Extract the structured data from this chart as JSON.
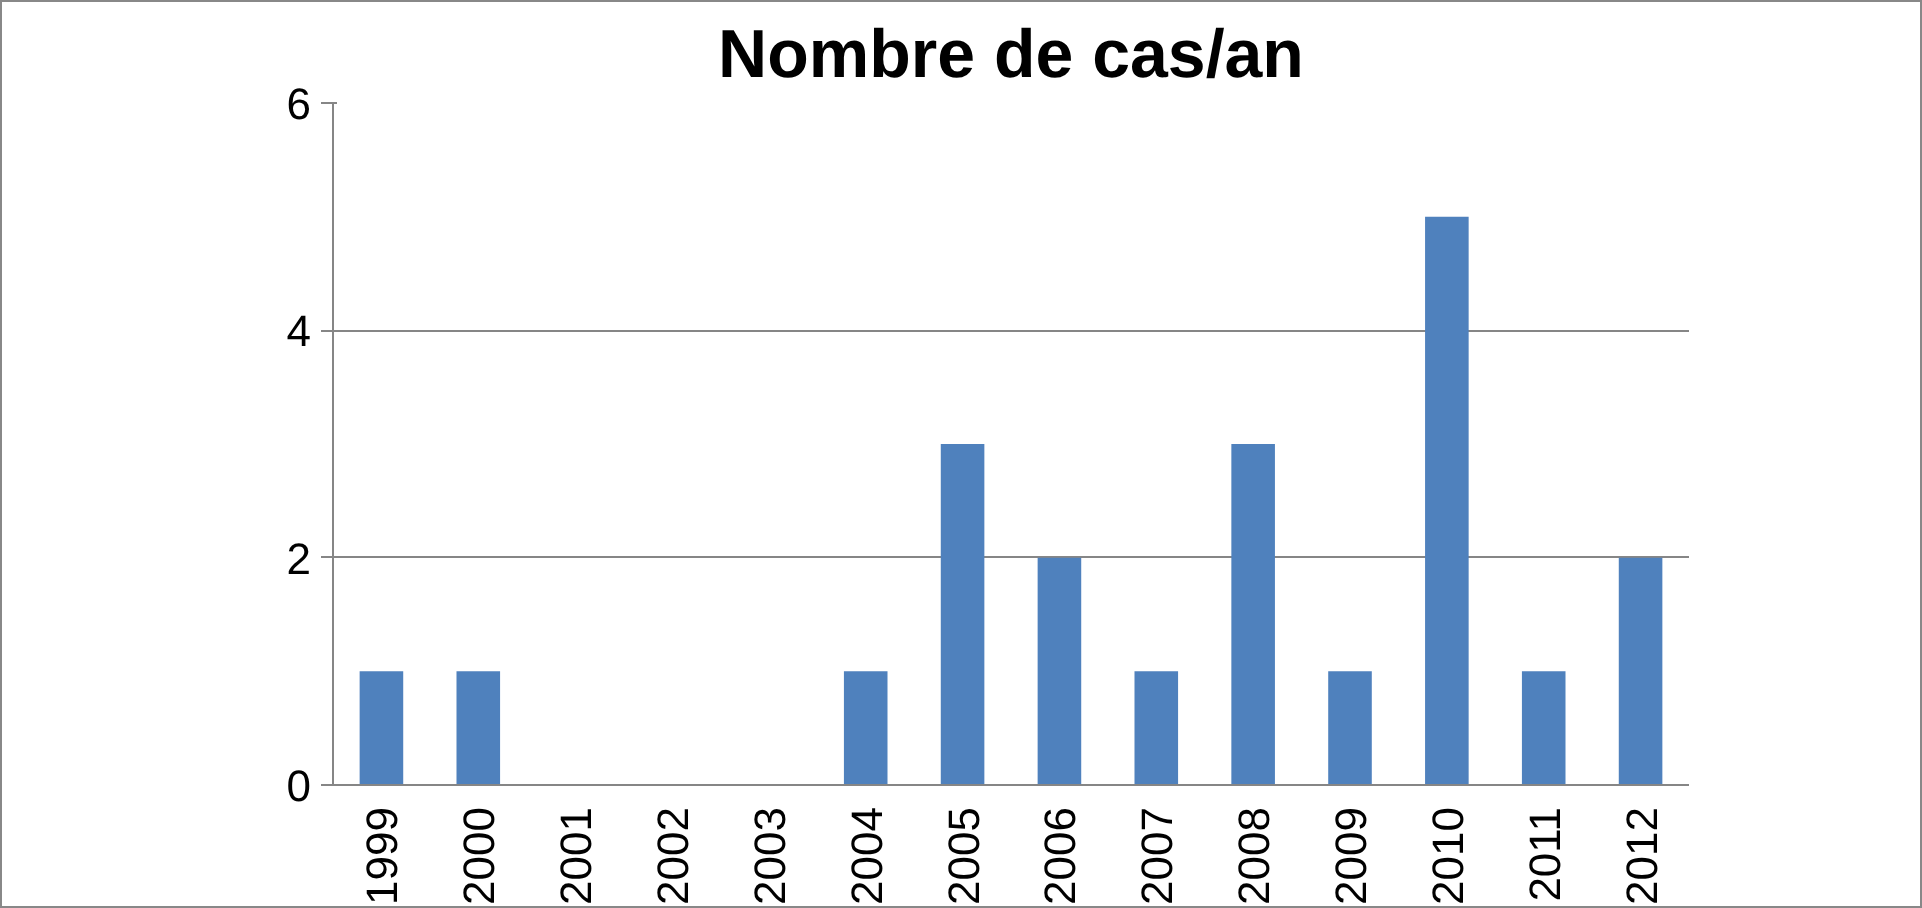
{
  "chart_data": {
    "type": "bar",
    "title": "Nombre de cas/an",
    "categories": [
      "1999",
      "2000",
      "2001",
      "2002",
      "2003",
      "2004",
      "2005",
      "2006",
      "2007",
      "2008",
      "2009",
      "2010",
      "2011",
      "2012"
    ],
    "values": [
      1,
      1,
      0,
      0,
      0,
      1,
      3,
      2,
      1,
      3,
      1,
      5,
      1,
      2
    ],
    "color": "#4f81bd",
    "ylim": [
      0,
      6
    ],
    "yticks": [
      0,
      2,
      4,
      6
    ],
    "grid": "y"
  }
}
